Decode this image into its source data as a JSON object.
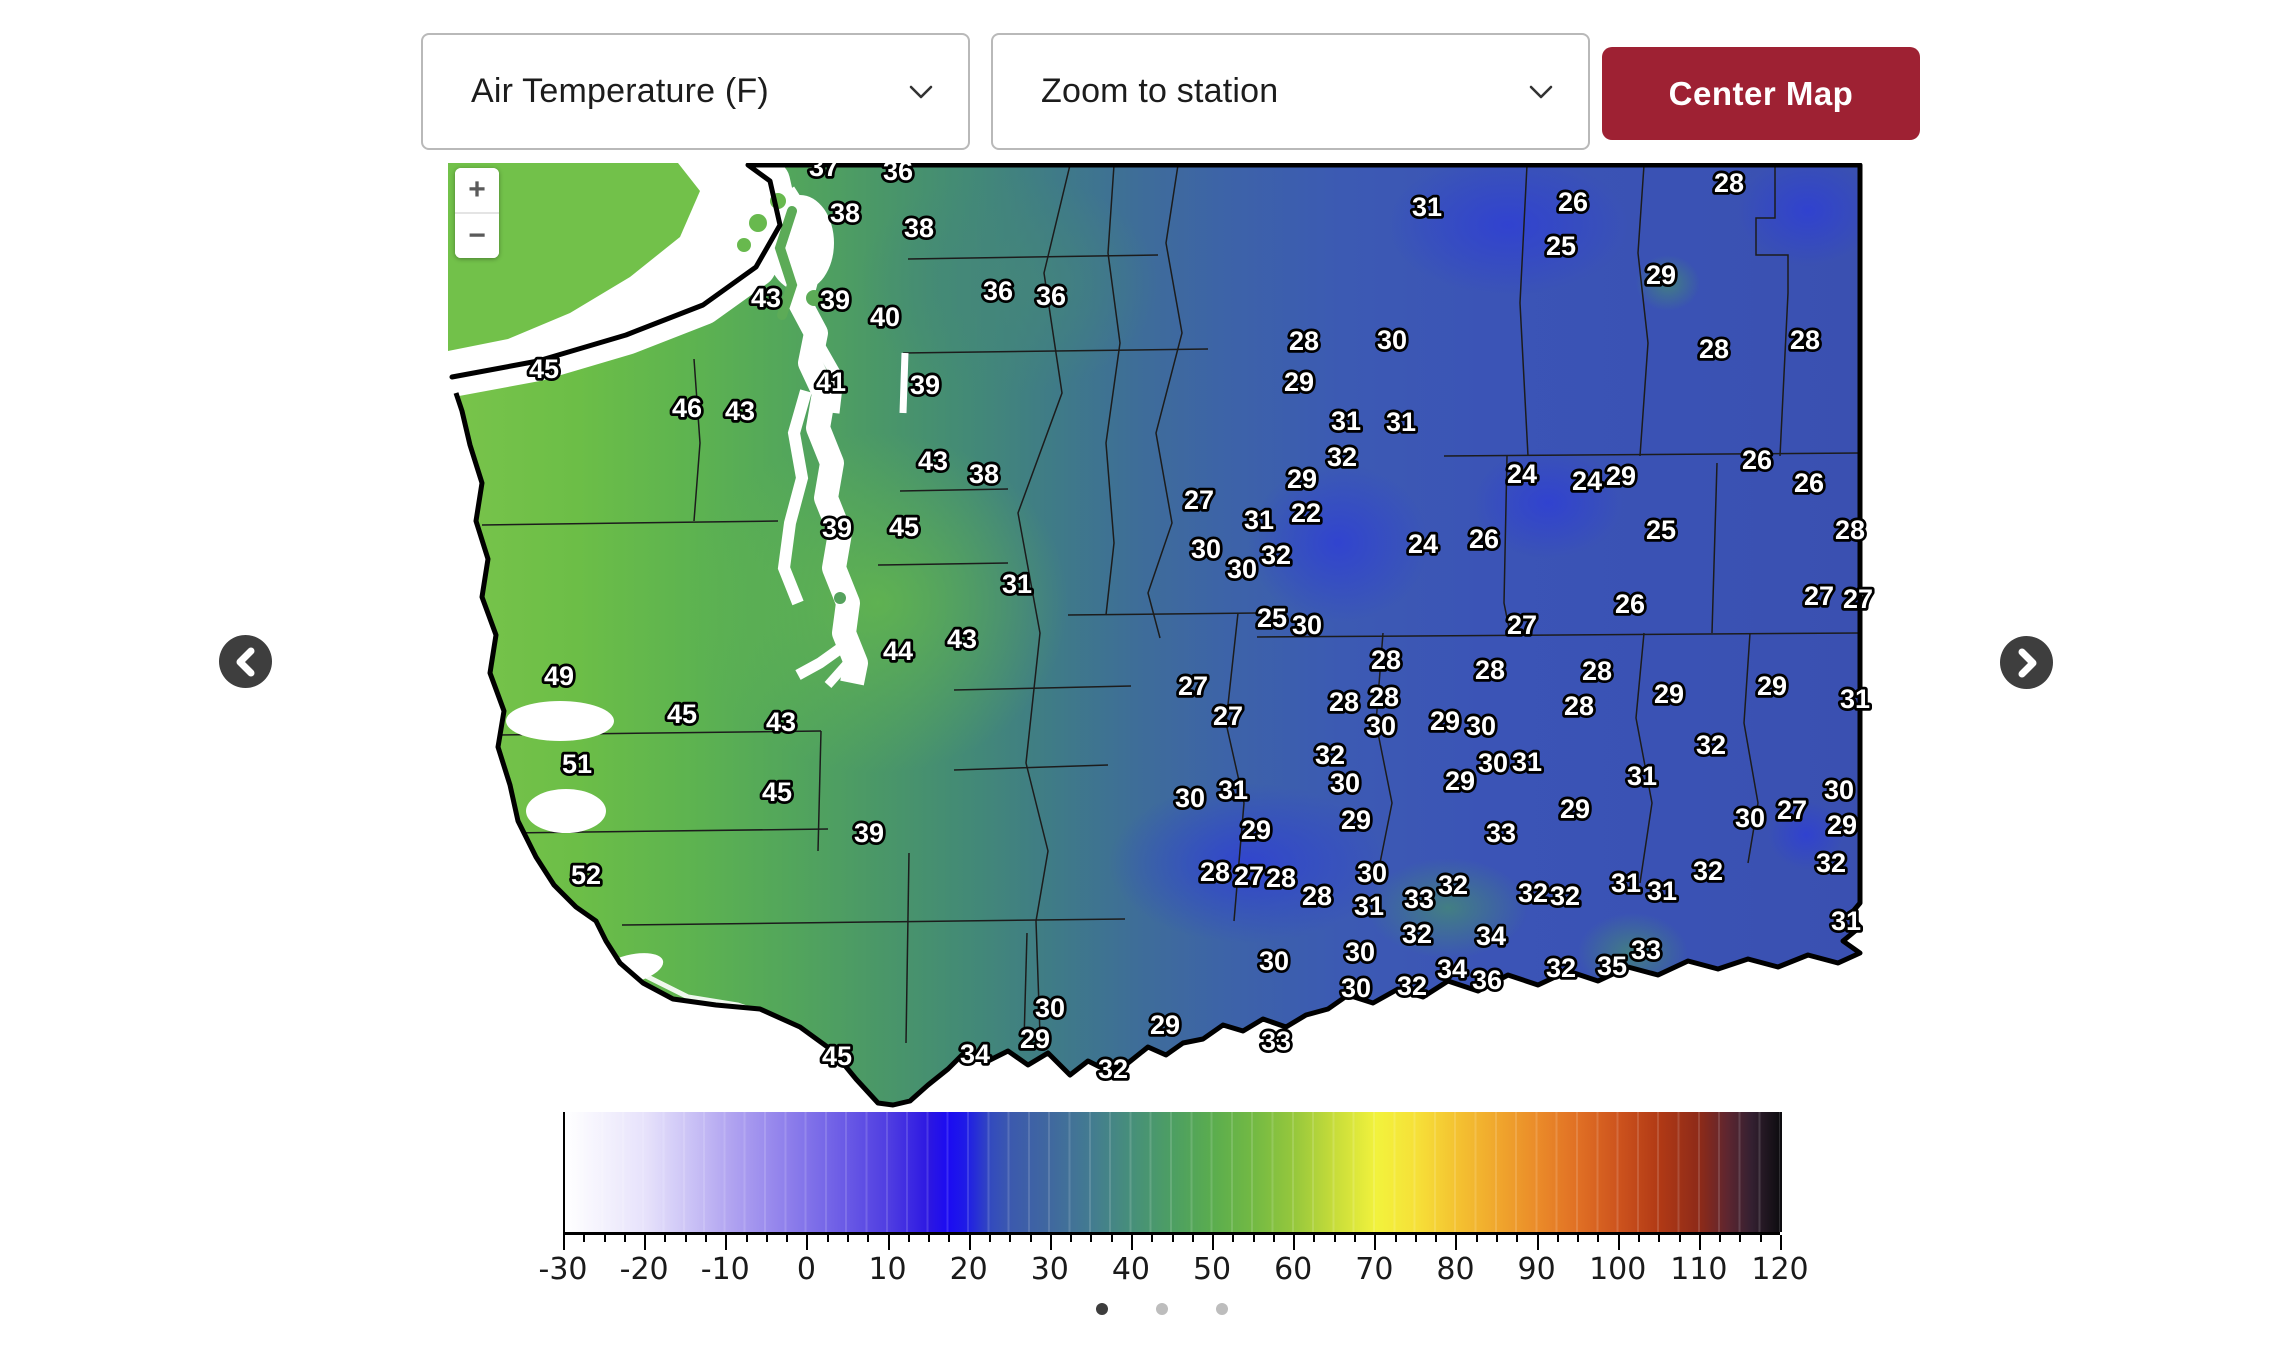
{
  "controls": {
    "layer_select": {
      "value": "Air Temperature (F)"
    },
    "station_select": {
      "value": "Zoom to station"
    },
    "center_map_label": "Center Map",
    "zoom_in": "+",
    "zoom_out": "−"
  },
  "colors": {
    "accent_red": "#9e2133",
    "arrow_circle": "#3e3e3e",
    "dot_active": "#3d3d3d",
    "dot_inactive": "#bdbdbd"
  },
  "carousel": {
    "count": 3,
    "active": 0
  },
  "colorbar": {
    "ticks": [
      -30,
      -20,
      -10,
      0,
      10,
      20,
      30,
      40,
      50,
      60,
      70,
      80,
      90,
      100,
      110,
      120
    ],
    "min": -30,
    "max": 120,
    "gradient": [
      [
        0,
        "#ffffff"
      ],
      [
        0.033,
        "#f3f1fd"
      ],
      [
        0.067,
        "#e6e1fb"
      ],
      [
        0.1,
        "#cdc5f6"
      ],
      [
        0.133,
        "#b3a6f1"
      ],
      [
        0.167,
        "#9a8bed"
      ],
      [
        0.2,
        "#8172e9"
      ],
      [
        0.233,
        "#6858e5"
      ],
      [
        0.267,
        "#4e3ce1"
      ],
      [
        0.3,
        "#2b16e2"
      ],
      [
        0.315,
        "#1b0bf2"
      ],
      [
        0.33,
        "#1f1ce6"
      ],
      [
        0.35,
        "#334bbd"
      ],
      [
        0.367,
        "#3c5aad"
      ],
      [
        0.4,
        "#40699e"
      ],
      [
        0.433,
        "#437c90"
      ],
      [
        0.467,
        "#479079"
      ],
      [
        0.5,
        "#4d9f62"
      ],
      [
        0.533,
        "#5bad4e"
      ],
      [
        0.567,
        "#74ba43"
      ],
      [
        0.6,
        "#97c83c"
      ],
      [
        0.633,
        "#c8dd3a"
      ],
      [
        0.667,
        "#f2f23c"
      ],
      [
        0.7,
        "#f6e038"
      ],
      [
        0.733,
        "#f4c231"
      ],
      [
        0.767,
        "#f0a62d"
      ],
      [
        0.8,
        "#ea8a29"
      ],
      [
        0.833,
        "#e06f24"
      ],
      [
        0.867,
        "#cc521d"
      ],
      [
        0.9,
        "#b03915"
      ],
      [
        0.933,
        "#8c2a19"
      ],
      [
        0.955,
        "#5e2630"
      ],
      [
        0.975,
        "#342031"
      ],
      [
        1,
        "#0b0b0e"
      ]
    ]
  },
  "map": {
    "unit": "F",
    "land_gradient": [
      [
        0,
        "#79c44b"
      ],
      [
        0.09,
        "#6cbe47"
      ],
      [
        0.17,
        "#5db350"
      ],
      [
        0.24,
        "#52a55c"
      ],
      [
        0.3,
        "#4a9768"
      ],
      [
        0.36,
        "#438a76"
      ],
      [
        0.42,
        "#3f7b87"
      ],
      [
        0.48,
        "#3e6d99"
      ],
      [
        0.54,
        "#3d63a8"
      ],
      [
        0.62,
        "#3c5ab3"
      ],
      [
        0.72,
        "#3b54b6"
      ],
      [
        0.85,
        "#3a52b4"
      ],
      [
        1,
        "#3a50b0"
      ]
    ],
    "stations": [
      [
        37,
        376,
        4
      ],
      [
        36,
        450,
        8
      ],
      [
        38,
        397,
        50
      ],
      [
        38,
        471,
        65
      ],
      [
        43,
        318,
        135
      ],
      [
        39,
        387,
        137
      ],
      [
        40,
        437,
        154
      ],
      [
        36,
        550,
        128
      ],
      [
        36,
        603,
        133
      ],
      [
        31,
        979,
        44
      ],
      [
        26,
        1125,
        39
      ],
      [
        25,
        1113,
        83
      ],
      [
        28,
        1281,
        20
      ],
      [
        29,
        1213,
        112
      ],
      [
        28,
        1357,
        177
      ],
      [
        28,
        1266,
        186
      ],
      [
        45,
        96,
        206
      ],
      [
        46,
        239,
        245
      ],
      [
        43,
        292,
        248
      ],
      [
        41,
        383,
        219
      ],
      [
        39,
        477,
        222
      ],
      [
        28,
        856,
        178
      ],
      [
        30,
        944,
        177
      ],
      [
        29,
        851,
        219
      ],
      [
        31,
        898,
        258
      ],
      [
        31,
        953,
        259
      ],
      [
        32,
        894,
        294
      ],
      [
        29,
        854,
        316
      ],
      [
        26,
        1309,
        297
      ],
      [
        26,
        1361,
        320
      ],
      [
        24,
        1074,
        311
      ],
      [
        24,
        1139,
        318
      ],
      [
        29,
        1173,
        313
      ],
      [
        43,
        485,
        298
      ],
      [
        38,
        536,
        311
      ],
      [
        27,
        751,
        337
      ],
      [
        31,
        811,
        357
      ],
      [
        22,
        858,
        350
      ],
      [
        30,
        758,
        386
      ],
      [
        32,
        828,
        392
      ],
      [
        30,
        794,
        406
      ],
      [
        24,
        975,
        381
      ],
      [
        26,
        1036,
        376
      ],
      [
        25,
        1213,
        367
      ],
      [
        28,
        1402,
        367
      ],
      [
        39,
        389,
        365
      ],
      [
        45,
        456,
        364
      ],
      [
        25,
        824,
        455
      ],
      [
        30,
        859,
        462
      ],
      [
        26,
        1182,
        441
      ],
      [
        27,
        1074,
        462
      ],
      [
        27,
        1371,
        433
      ],
      [
        27,
        1410,
        436
      ],
      [
        31,
        569,
        421
      ],
      [
        43,
        514,
        476
      ],
      [
        44,
        450,
        488
      ],
      [
        49,
        111,
        513
      ],
      [
        45,
        234,
        551
      ],
      [
        43,
        333,
        559
      ],
      [
        27,
        745,
        523
      ],
      [
        27,
        780,
        553
      ],
      [
        28,
        938,
        497
      ],
      [
        28,
        1042,
        507
      ],
      [
        28,
        1149,
        508
      ],
      [
        28,
        1131,
        543
      ],
      [
        29,
        1221,
        531
      ],
      [
        29,
        1324,
        523
      ],
      [
        31,
        1407,
        536
      ],
      [
        28,
        896,
        539
      ],
      [
        28,
        936,
        534
      ],
      [
        30,
        933,
        563
      ],
      [
        29,
        997,
        558
      ],
      [
        30,
        1033,
        563
      ],
      [
        32,
        882,
        592
      ],
      [
        30,
        897,
        620
      ],
      [
        29,
        1012,
        618
      ],
      [
        30,
        1045,
        600
      ],
      [
        31,
        1079,
        599
      ],
      [
        31,
        1194,
        613
      ],
      [
        32,
        1263,
        582
      ],
      [
        51,
        129,
        601
      ],
      [
        45,
        329,
        629
      ],
      [
        30,
        742,
        635
      ],
      [
        31,
        785,
        627
      ],
      [
        29,
        908,
        657
      ],
      [
        29,
        1127,
        646
      ],
      [
        30,
        1391,
        627
      ],
      [
        27,
        1344,
        647
      ],
      [
        30,
        1302,
        655
      ],
      [
        29,
        1394,
        662
      ],
      [
        39,
        421,
        670
      ],
      [
        33,
        1053,
        670
      ],
      [
        29,
        808,
        667
      ],
      [
        28,
        767,
        709
      ],
      [
        27,
        801,
        713
      ],
      [
        28,
        833,
        715
      ],
      [
        28,
        869,
        733
      ],
      [
        30,
        924,
        710
      ],
      [
        31,
        921,
        743
      ],
      [
        33,
        971,
        736
      ],
      [
        32,
        969,
        771
      ],
      [
        30,
        912,
        789
      ],
      [
        30,
        826,
        798
      ],
      [
        32,
        1005,
        722
      ],
      [
        32,
        1085,
        730
      ],
      [
        32,
        1117,
        733
      ],
      [
        31,
        1178,
        720
      ],
      [
        31,
        1214,
        728
      ],
      [
        32,
        1260,
        708
      ],
      [
        32,
        1383,
        700
      ],
      [
        31,
        1398,
        758
      ],
      [
        52,
        138,
        712
      ],
      [
        30,
        908,
        825
      ],
      [
        32,
        964,
        823
      ],
      [
        34,
        1043,
        773
      ],
      [
        33,
        1198,
        787
      ],
      [
        35,
        1164,
        803
      ],
      [
        32,
        1113,
        805
      ],
      [
        34,
        1004,
        806
      ],
      [
        36,
        1039,
        817
      ],
      [
        30,
        602,
        845
      ],
      [
        29,
        587,
        876
      ],
      [
        34,
        527,
        891
      ],
      [
        29,
        717,
        862
      ],
      [
        32,
        665,
        906
      ],
      [
        33,
        828,
        878
      ],
      [
        45,
        389,
        893
      ]
    ]
  }
}
